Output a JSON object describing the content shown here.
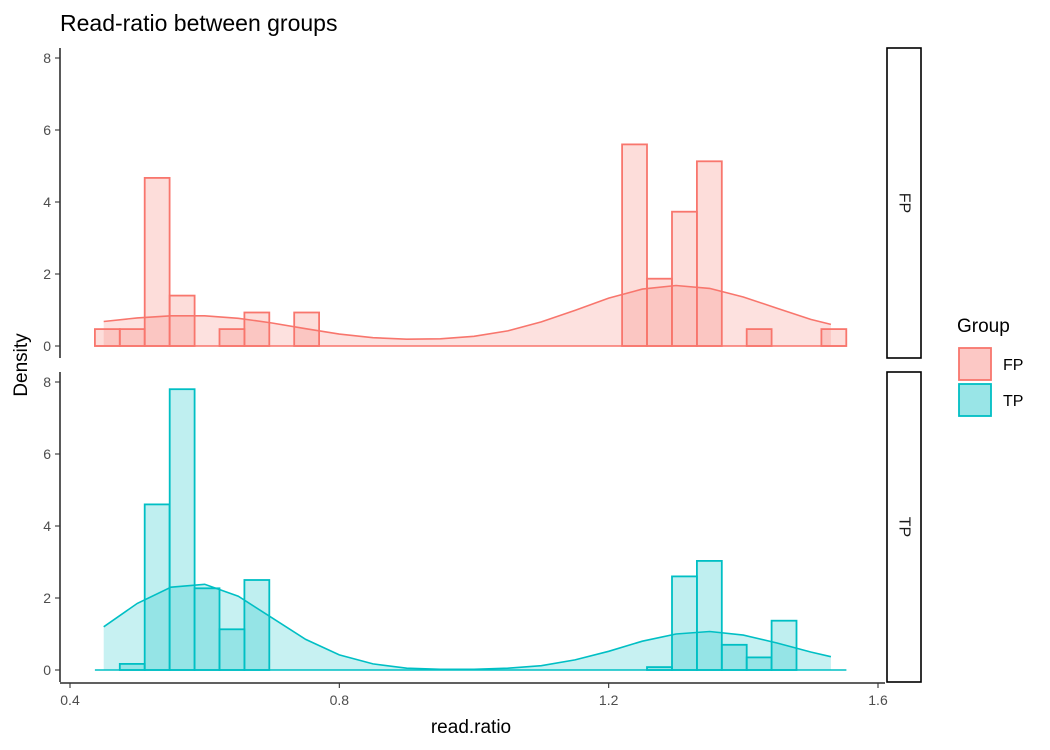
{
  "chart_data": {
    "type": "histogram-density-facet",
    "title": "Read-ratio between groups",
    "xlabel": "read.ratio",
    "ylabel": "Density",
    "xlim": [
      0.4,
      1.6
    ],
    "ylim": [
      0,
      8
    ],
    "x_ticks": [
      "0.4",
      "0.8",
      "1.2",
      "1.6"
    ],
    "y_ticks": [
      "0",
      "2",
      "4",
      "6",
      "8"
    ],
    "grid": false,
    "bin_width": 0.037,
    "legend": {
      "title": "Group",
      "position": "right",
      "entries": [
        {
          "label": "FP",
          "color": "#F8766D"
        },
        {
          "label": "TP",
          "color": "#00BFC4"
        }
      ]
    },
    "panels": [
      {
        "strip": "FP",
        "color": "#F8766D",
        "bins": [
          {
            "x0": 0.437,
            "x1": 0.474,
            "y": 0.47
          },
          {
            "x0": 0.474,
            "x1": 0.511,
            "y": 0.47
          },
          {
            "x0": 0.511,
            "x1": 0.548,
            "y": 4.67
          },
          {
            "x0": 0.548,
            "x1": 0.585,
            "y": 1.4
          },
          {
            "x0": 0.622,
            "x1": 0.659,
            "y": 0.47
          },
          {
            "x0": 0.659,
            "x1": 0.696,
            "y": 0.93
          },
          {
            "x0": 0.733,
            "x1": 0.77,
            "y": 0.93
          },
          {
            "x0": 1.22,
            "x1": 1.257,
            "y": 5.6
          },
          {
            "x0": 1.257,
            "x1": 1.294,
            "y": 1.87
          },
          {
            "x0": 1.294,
            "x1": 1.331,
            "y": 3.73
          },
          {
            "x0": 1.331,
            "x1": 1.368,
            "y": 5.13
          },
          {
            "x0": 1.405,
            "x1": 1.442,
            "y": 0.47
          },
          {
            "x0": 1.516,
            "x1": 1.553,
            "y": 0.47
          }
        ],
        "density": {
          "x": [
            0.45,
            0.5,
            0.55,
            0.6,
            0.65,
            0.7,
            0.75,
            0.8,
            0.85,
            0.9,
            0.95,
            1.0,
            1.05,
            1.1,
            1.15,
            1.2,
            1.25,
            1.3,
            1.35,
            1.4,
            1.45,
            1.5,
            1.53
          ],
          "y": [
            0.68,
            0.78,
            0.84,
            0.84,
            0.77,
            0.64,
            0.48,
            0.33,
            0.23,
            0.19,
            0.2,
            0.27,
            0.42,
            0.67,
            0.99,
            1.33,
            1.58,
            1.68,
            1.6,
            1.36,
            1.05,
            0.74,
            0.6
          ]
        }
      },
      {
        "strip": "TP",
        "color": "#00BFC4",
        "bins": [
          {
            "x0": 0.474,
            "x1": 0.511,
            "y": 0.17
          },
          {
            "x0": 0.511,
            "x1": 0.548,
            "y": 4.6
          },
          {
            "x0": 0.548,
            "x1": 0.585,
            "y": 7.8
          },
          {
            "x0": 0.585,
            "x1": 0.622,
            "y": 2.27
          },
          {
            "x0": 0.622,
            "x1": 0.659,
            "y": 1.13
          },
          {
            "x0": 0.659,
            "x1": 0.696,
            "y": 2.5
          },
          {
            "x0": 1.257,
            "x1": 1.294,
            "y": 0.08
          },
          {
            "x0": 1.294,
            "x1": 1.331,
            "y": 2.6
          },
          {
            "x0": 1.331,
            "x1": 1.368,
            "y": 3.03
          },
          {
            "x0": 1.368,
            "x1": 1.405,
            "y": 0.7
          },
          {
            "x0": 1.405,
            "x1": 1.442,
            "y": 0.35
          },
          {
            "x0": 1.442,
            "x1": 1.479,
            "y": 1.37
          }
        ],
        "density": {
          "x": [
            0.45,
            0.5,
            0.55,
            0.6,
            0.65,
            0.7,
            0.75,
            0.8,
            0.85,
            0.9,
            0.95,
            1.0,
            1.05,
            1.1,
            1.15,
            1.2,
            1.25,
            1.3,
            1.35,
            1.4,
            1.45,
            1.5,
            1.53
          ],
          "y": [
            1.2,
            1.85,
            2.3,
            2.38,
            2.05,
            1.45,
            0.85,
            0.42,
            0.17,
            0.05,
            0.02,
            0.02,
            0.05,
            0.12,
            0.28,
            0.52,
            0.8,
            1.0,
            1.07,
            0.97,
            0.75,
            0.5,
            0.37
          ]
        }
      }
    ]
  }
}
